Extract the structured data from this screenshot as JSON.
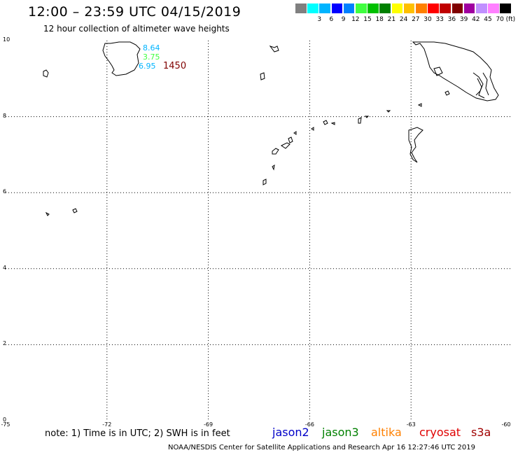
{
  "title": "12:00 – 23:59 UTC 04/15/2019",
  "subtitle": "12 hour collection of altimeter wave heights",
  "scale": {
    "unit": "(ft)",
    "items": [
      {
        "label": "",
        "color": "#808080"
      },
      {
        "label": "3",
        "color": "#00ffff"
      },
      {
        "label": "6",
        "color": "#00b4ff"
      },
      {
        "label": "9",
        "color": "#0000ff"
      },
      {
        "label": "12",
        "color": "#0080ff"
      },
      {
        "label": "15",
        "color": "#40ff40"
      },
      {
        "label": "18",
        "color": "#00c000"
      },
      {
        "label": "21",
        "color": "#008000"
      },
      {
        "label": "24",
        "color": "#ffff00"
      },
      {
        "label": "27",
        "color": "#ffc000"
      },
      {
        "label": "30",
        "color": "#ff8000"
      },
      {
        "label": "33",
        "color": "#ff0000"
      },
      {
        "label": "36",
        "color": "#c00000"
      },
      {
        "label": "39",
        "color": "#800000"
      },
      {
        "label": "42",
        "color": "#a000a0"
      },
      {
        "label": "45",
        "color": "#c090ff"
      },
      {
        "label": "70",
        "color": "#ff80ff"
      },
      {
        "label": "",
        "color": "#000000"
      }
    ]
  },
  "axes": {
    "lat_labels": [
      "10",
      "8",
      "6",
      "4",
      "2",
      "0"
    ],
    "lon_labels": [
      "-75",
      "-72",
      "-69",
      "-66",
      "-63",
      "-60"
    ]
  },
  "observations": {
    "values": [
      {
        "text": "8.64",
        "color": "#00b4ff"
      },
      {
        "text": "3.75",
        "color": "#40ff40"
      },
      {
        "text": "6.95",
        "color": "#00b4ff"
      }
    ],
    "time": {
      "text": "1450",
      "color": "#800000"
    }
  },
  "note": "note: 1) Time is in UTC; 2) SWH is in feet",
  "satellites": [
    {
      "name": "jason2",
      "color": "#0000c8"
    },
    {
      "name": "jason3",
      "color": "#008000"
    },
    {
      "name": "altika",
      "color": "#ff8000"
    },
    {
      "name": "cryosat",
      "color": "#e00000"
    },
    {
      "name": "s3a",
      "color": "#a00000"
    }
  ],
  "credit": "NOAA/NESDIS Center for Satellite Applications and Research   Apr 16 12:27:46 UTC 2019"
}
